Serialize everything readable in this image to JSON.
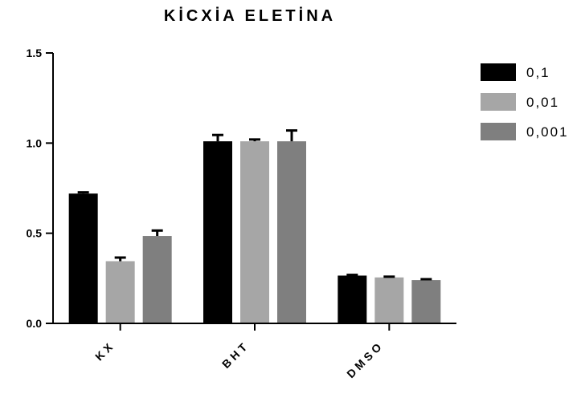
{
  "chart_data": {
    "type": "bar",
    "title": "KİCXİA ELETİNA",
    "xlabel": "",
    "ylabel": "",
    "categories": [
      "KX",
      "BHT",
      "DMSO"
    ],
    "series": [
      {
        "name": "0,1",
        "color": "#000000",
        "values": [
          0.72,
          1.01,
          0.265
        ],
        "errors": [
          0.007,
          0.035,
          0.004
        ]
      },
      {
        "name": "0,01",
        "color": "#a6a6a6",
        "values": [
          0.345,
          1.01,
          0.255
        ],
        "errors": [
          0.02,
          0.01,
          0.004
        ]
      },
      {
        "name": "0,001",
        "color": "#7f7f7f",
        "values": [
          0.485,
          1.01,
          0.24
        ],
        "errors": [
          0.03,
          0.06,
          0.005
        ]
      }
    ],
    "ylim": [
      0,
      1.5
    ],
    "yticks": [
      "0.0",
      "0.5",
      "1.0",
      "1.5"
    ],
    "legend_position": "right",
    "grid": false
  }
}
